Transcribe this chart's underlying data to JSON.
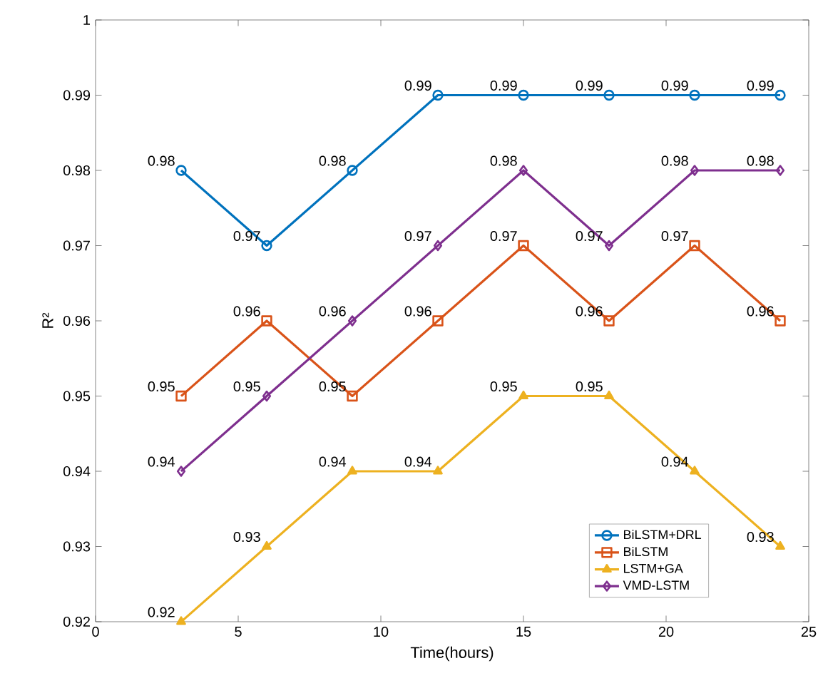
{
  "chart_data": {
    "type": "line",
    "xlabel": "Time(hours)",
    "ylabel": "R²",
    "x": [
      3,
      6,
      9,
      12,
      15,
      18,
      21,
      24
    ],
    "series": [
      {
        "name": "BiLSTM+DRL",
        "color": "#0072bd",
        "marker": "circle",
        "values": [
          0.98,
          0.97,
          0.98,
          0.99,
          0.99,
          0.99,
          0.99,
          0.99
        ]
      },
      {
        "name": "BiLSTM",
        "color": "#d95319",
        "marker": "square",
        "values": [
          0.95,
          0.96,
          0.95,
          0.96,
          0.97,
          0.96,
          0.97,
          0.96
        ]
      },
      {
        "name": "LSTM+GA",
        "color": "#edb120",
        "marker": "triangle",
        "values": [
          0.92,
          0.93,
          0.94,
          0.94,
          0.95,
          0.95,
          0.94,
          0.93
        ]
      },
      {
        "name": "VMD-LSTM",
        "color": "#7e2f8e",
        "marker": "diamond",
        "values": [
          0.94,
          0.95,
          0.96,
          0.97,
          0.98,
          0.97,
          0.98,
          0.98
        ]
      }
    ],
    "xlim": [
      0,
      25
    ],
    "xticks": [
      0,
      5,
      10,
      15,
      20,
      25
    ],
    "ylim": [
      0.92,
      1
    ],
    "yticks": [
      0.92,
      0.93,
      0.94,
      0.95,
      0.96,
      0.97,
      0.98,
      0.99,
      1
    ],
    "data_labels": true,
    "legend": "bottom right",
    "grid": false,
    "line_style": "solid"
  }
}
